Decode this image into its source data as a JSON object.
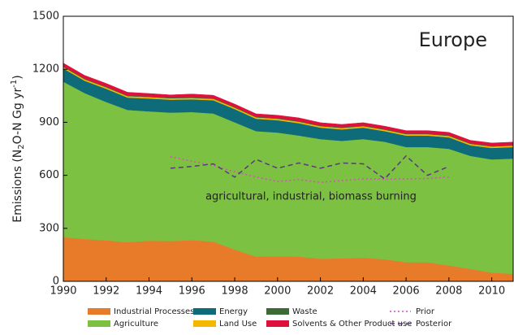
{
  "chart_data": {
    "type": "stacked-area",
    "ylabel_parts": [
      "Emissions (N",
      "2",
      "O-N Gg yr",
      "-1",
      ")"
    ],
    "annotations": [
      "Europe",
      "agricultural, industrial, biomass burning"
    ],
    "x": [
      1990,
      1991,
      1992,
      1993,
      1994,
      1995,
      1996,
      1997,
      1998,
      1999,
      2000,
      2001,
      2002,
      2003,
      2004,
      2005,
      2006,
      2007,
      2008,
      2009,
      2010,
      2011
    ],
    "xlim": [
      1990,
      2011
    ],
    "xticks": [
      1990,
      1992,
      1994,
      1996,
      1998,
      2000,
      2002,
      2004,
      2006,
      2008,
      2010
    ],
    "ylim": [
      0,
      1500
    ],
    "yticks": [
      0,
      300,
      600,
      900,
      1200,
      1500
    ],
    "grid": false,
    "series": [
      {
        "name": "Industrial Processes",
        "kind": "area",
        "color": "#e87b2a",
        "values": [
          250,
          240,
          232,
          222,
          230,
          228,
          233,
          225,
          180,
          140,
          142,
          140,
          128,
          130,
          133,
          125,
          108,
          108,
          90,
          70,
          50,
          42
        ]
      },
      {
        "name": "Agriculture",
        "kind": "area",
        "color": "#7dc142",
        "values": [
          880,
          825,
          783,
          748,
          732,
          727,
          725,
          725,
          720,
          710,
          700,
          685,
          677,
          665,
          672,
          665,
          652,
          652,
          660,
          640,
          640,
          653
        ]
      },
      {
        "name": "Energy",
        "kind": "area",
        "color": "#0e6b7a",
        "values": [
          75,
          70,
          75,
          70,
          73,
          73,
          72,
          75,
          75,
          70,
          70,
          70,
          65,
          65,
          65,
          60,
          65,
          65,
          65,
          60,
          65,
          65
        ]
      },
      {
        "name": "Land Use",
        "kind": "area",
        "color": "#f5b800",
        "values": [
          8,
          8,
          8,
          8,
          8,
          8,
          8,
          8,
          8,
          8,
          8,
          8,
          8,
          8,
          8,
          8,
          8,
          8,
          8,
          8,
          8,
          8
        ]
      },
      {
        "name": "Waste",
        "kind": "area",
        "color": "#3d6b35",
        "values": [
          4,
          4,
          4,
          4,
          4,
          4,
          4,
          4,
          4,
          4,
          4,
          4,
          4,
          4,
          4,
          4,
          4,
          4,
          4,
          4,
          4,
          4
        ]
      },
      {
        "name": "Solvents & Other Product use",
        "kind": "area",
        "color": "#e0103c",
        "values": [
          18,
          18,
          18,
          18,
          16,
          15,
          18,
          16,
          16,
          16,
          16,
          18,
          16,
          16,
          16,
          16,
          16,
          16,
          16,
          16,
          16,
          16
        ]
      },
      {
        "name": "Prior",
        "kind": "line",
        "dash": "2,3",
        "color": "#d64fc0",
        "values": [
          null,
          null,
          null,
          null,
          null,
          705,
          680,
          655,
          620,
          590,
          565,
          575,
          560,
          570,
          580,
          578,
          580,
          582,
          590,
          null,
          null,
          null
        ]
      },
      {
        "name": "Posterior",
        "kind": "line",
        "dash": "6,4",
        "color": "#5a3a7a",
        "values": [
          null,
          null,
          null,
          null,
          null,
          640,
          650,
          665,
          590,
          690,
          640,
          670,
          640,
          670,
          665,
          580,
          710,
          600,
          650,
          null,
          null,
          null
        ]
      }
    ]
  }
}
